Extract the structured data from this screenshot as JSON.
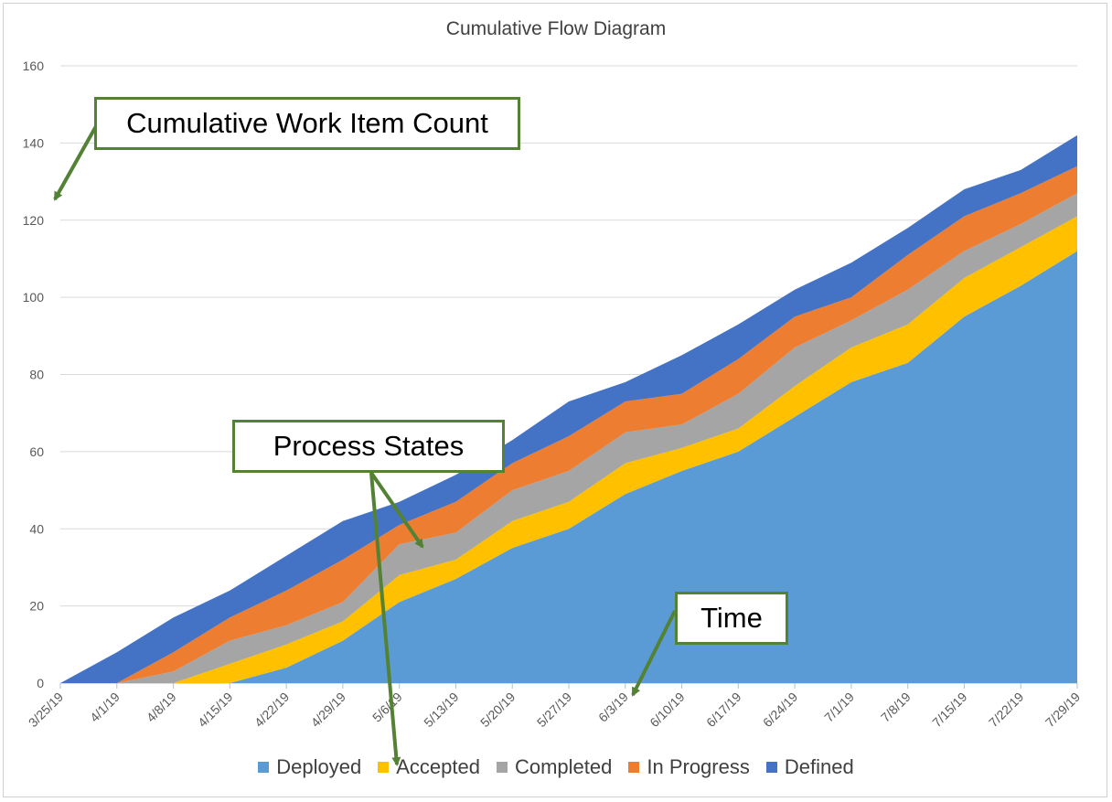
{
  "chart_data": {
    "type": "area",
    "stacked": true,
    "title": "Cumulative Flow Diagram",
    "xlabel": "",
    "ylabel": "",
    "ylim": [
      0,
      160
    ],
    "yticks": [
      0,
      20,
      40,
      60,
      80,
      100,
      120,
      140,
      160
    ],
    "categories": [
      "3/25/19",
      "4/1/19",
      "4/8/19",
      "4/15/19",
      "4/22/19",
      "4/29/19",
      "5/6/19",
      "5/13/19",
      "5/20/19",
      "5/27/19",
      "6/3/19",
      "6/10/19",
      "6/17/19",
      "6/24/19",
      "7/1/19",
      "7/8/19",
      "7/15/19",
      "7/22/19",
      "7/29/19"
    ],
    "grid": true,
    "legend_position": "bottom",
    "series": [
      {
        "name": "Deployed",
        "color": "#5B9BD5",
        "values": [
          0,
          0,
          0,
          0,
          4,
          11,
          21,
          27,
          35,
          40,
          49,
          55,
          60,
          69,
          78,
          83,
          95,
          103,
          112
        ]
      },
      {
        "name": "Accepted",
        "color": "#FFC000",
        "values": [
          0,
          0,
          0,
          5,
          6,
          5,
          7,
          5,
          7,
          7,
          8,
          6,
          6,
          8,
          9,
          10,
          10,
          10,
          9
        ]
      },
      {
        "name": "Completed",
        "color": "#A5A5A5",
        "values": [
          0,
          0,
          3,
          6,
          5,
          5,
          8,
          7,
          8,
          8,
          8,
          6,
          9,
          10,
          7,
          9,
          7,
          6,
          6
        ]
      },
      {
        "name": "In Progress",
        "color": "#ED7D31",
        "values": [
          0,
          0,
          5,
          6,
          9,
          11,
          5,
          8,
          7,
          9,
          8,
          8,
          9,
          8,
          6,
          9,
          9,
          8,
          7
        ]
      },
      {
        "name": "Defined",
        "color": "#4472C4",
        "values": [
          0,
          8,
          9,
          7,
          9,
          10,
          6,
          7,
          6,
          9,
          5,
          10,
          9,
          7,
          9,
          7,
          7,
          6,
          8
        ]
      }
    ],
    "annotations": [
      {
        "text": "Cumulative Work Item Count",
        "points_to": "y-axis"
      },
      {
        "text": "Process States",
        "points_to": "stacked areas and legend"
      },
      {
        "text": "Time",
        "points_to": "x-axis"
      }
    ]
  },
  "callouts": {
    "count": "Cumulative Work Item Count",
    "states": "Process States",
    "time": "Time"
  },
  "colors": {
    "grid": "#d9d9d9",
    "axis_text": "#595959",
    "callout_border": "#548235",
    "arrow": "#548235"
  }
}
